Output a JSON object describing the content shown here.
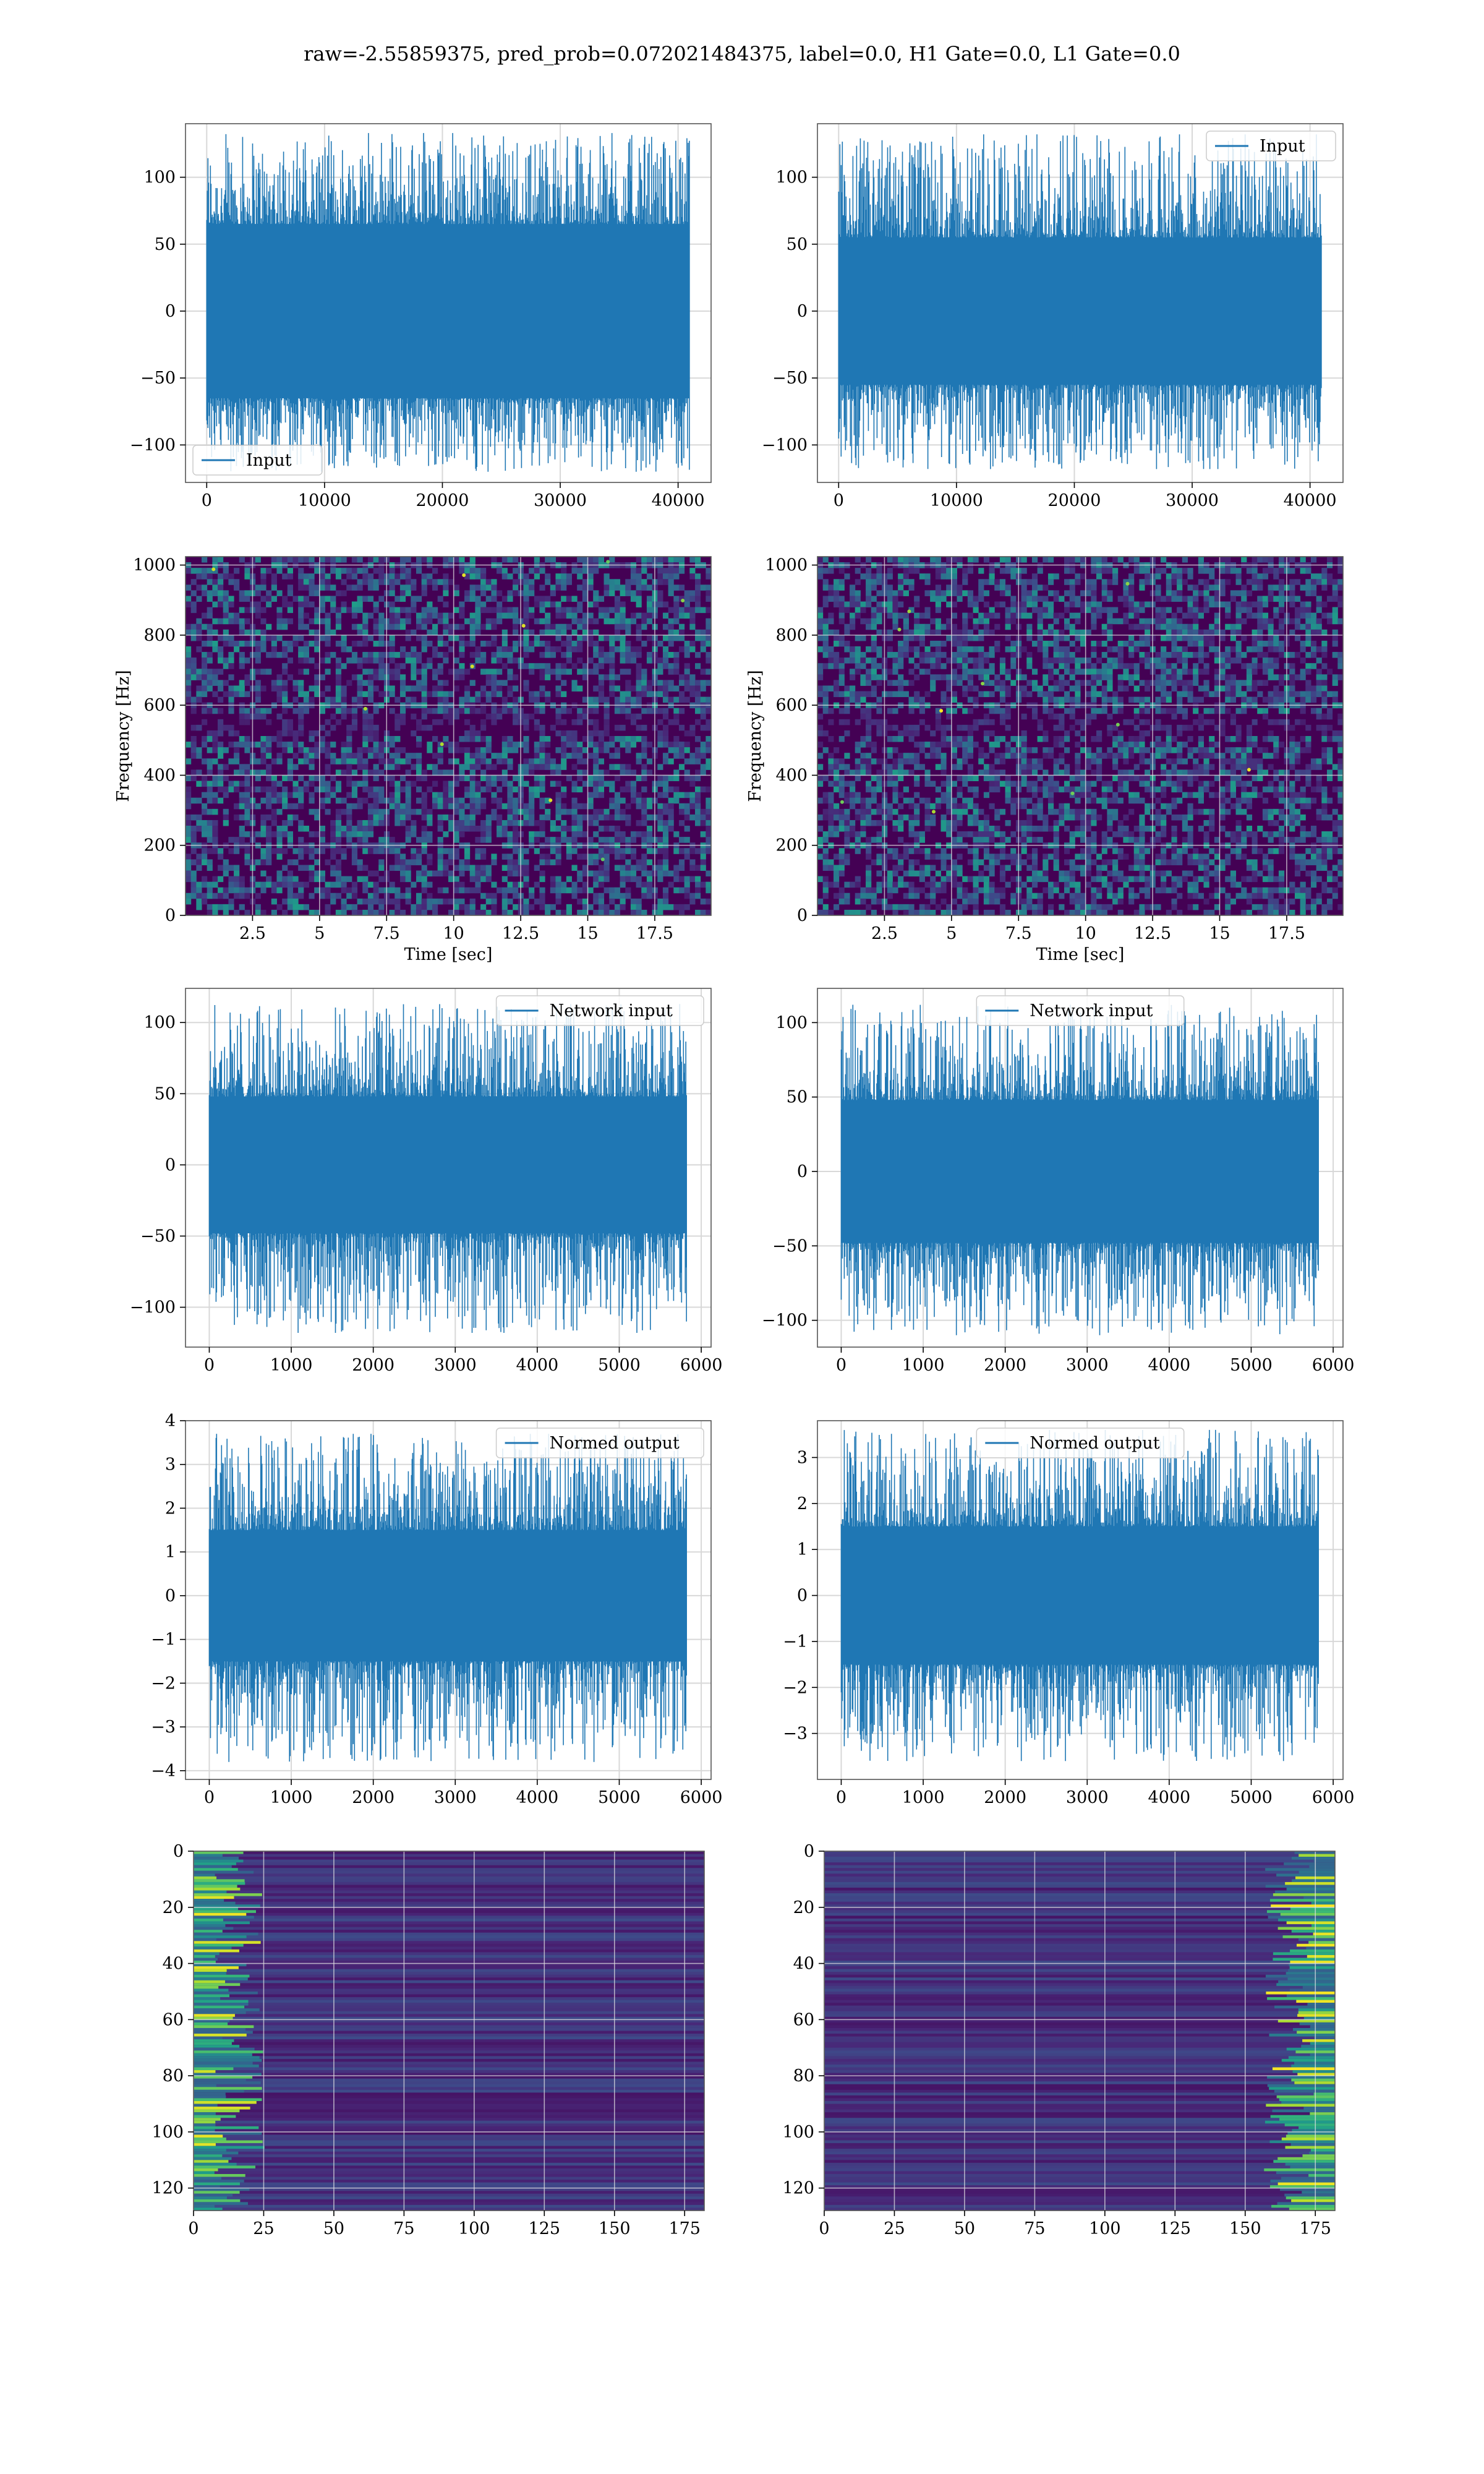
{
  "figure": {
    "title": "raw=-2.55859375, pred_prob=0.072021484375, label=0.0, H1 Gate=0.0, L1 Gate=0.0"
  },
  "colors": {
    "series": "#1f77b4",
    "grid": "#d8d8d8",
    "heat_low": "#440154",
    "heat_high": "#fde725"
  },
  "chart_data": [
    {
      "id": "r1c1",
      "type": "line",
      "legend": "Input",
      "legend_loc": "lower-left",
      "xlim": [
        -1800,
        42800
      ],
      "ylim": [
        -128,
        140
      ],
      "xticks": [
        0,
        10000,
        20000,
        30000,
        40000
      ],
      "yticks": [
        -100,
        -50,
        0,
        50,
        100
      ],
      "x_max": 40960,
      "core": 65,
      "extreme": [
        -120,
        133
      ],
      "grid": true
    },
    {
      "id": "r1c2",
      "type": "line",
      "legend": "Input",
      "legend_loc": "upper-right",
      "xlim": [
        -1800,
        42800
      ],
      "ylim": [
        -128,
        140
      ],
      "xticks": [
        0,
        10000,
        20000,
        30000,
        40000
      ],
      "yticks": [
        -100,
        -50,
        0,
        50,
        100
      ],
      "x_max": 40960,
      "core": 55,
      "extreme": [
        -118,
        132
      ],
      "grid": true
    },
    {
      "id": "r2c1",
      "type": "heatmap",
      "xlabel": "Time [sec]",
      "ylabel": "Frequency [Hz]",
      "xlim": [
        0,
        19.6
      ],
      "ylim": [
        0,
        1024
      ],
      "xticks": [
        2.5,
        5.0,
        7.5,
        10.0,
        12.5,
        15.0,
        17.5
      ],
      "yticks": [
        0,
        200,
        400,
        600,
        800,
        1000
      ],
      "grid": true
    },
    {
      "id": "r2c2",
      "type": "heatmap",
      "xlabel": "Time [sec]",
      "ylabel": "Frequency [Hz]",
      "xlim": [
        0,
        19.6
      ],
      "ylim": [
        0,
        1024
      ],
      "xticks": [
        2.5,
        5.0,
        7.5,
        10.0,
        12.5,
        15.0,
        17.5
      ],
      "yticks": [
        0,
        200,
        400,
        600,
        800,
        1000
      ],
      "grid": true
    },
    {
      "id": "r3c1",
      "type": "line",
      "legend": "Network input",
      "legend_loc": "upper-right",
      "xlim": [
        -290,
        6120
      ],
      "ylim": [
        -128,
        124
      ],
      "xticks": [
        0,
        1000,
        2000,
        3000,
        4000,
        5000,
        6000
      ],
      "yticks": [
        -100,
        -50,
        0,
        50,
        100
      ],
      "x_max": 5820,
      "core": 48,
      "extreme": [
        -118,
        113
      ],
      "grid": true
    },
    {
      "id": "r3c2",
      "type": "line",
      "legend": "Network input",
      "legend_loc": "upper-center",
      "xlim": [
        -290,
        6120
      ],
      "ylim": [
        -118,
        123
      ],
      "xticks": [
        0,
        1000,
        2000,
        3000,
        4000,
        5000,
        6000
      ],
      "yticks": [
        -100,
        -50,
        0,
        50,
        100
      ],
      "x_max": 5820,
      "core": 48,
      "extreme": [
        -110,
        112
      ],
      "grid": true
    },
    {
      "id": "r4c1",
      "type": "line",
      "legend": "Normed output",
      "legend_loc": "upper-right",
      "xlim": [
        -290,
        6120
      ],
      "ylim": [
        -4.2,
        4.0
      ],
      "xticks": [
        0,
        1000,
        2000,
        3000,
        4000,
        5000,
        6000
      ],
      "yticks": [
        -4,
        -3,
        -2,
        -1,
        0,
        1,
        2,
        3,
        4
      ],
      "x_max": 5820,
      "core": 1.5,
      "extreme": [
        -3.8,
        3.7
      ],
      "grid": true
    },
    {
      "id": "r4c2",
      "type": "line",
      "legend": "Normed output",
      "legend_loc": "upper-center",
      "xlim": [
        -290,
        6120
      ],
      "ylim": [
        -4.0,
        3.8
      ],
      "xticks": [
        0,
        1000,
        2000,
        3000,
        4000,
        5000,
        6000
      ],
      "yticks": [
        -3,
        -2,
        -1,
        0,
        1,
        2,
        3
      ],
      "x_max": 5820,
      "core": 1.5,
      "extreme": [
        -3.6,
        3.6
      ],
      "grid": true
    },
    {
      "id": "r5c1",
      "type": "heatmap",
      "xlim": [
        0,
        182
      ],
      "ylim": [
        128,
        0
      ],
      "xticks": [
        0,
        25,
        50,
        75,
        100,
        125,
        150,
        175
      ],
      "yticks": [
        0,
        20,
        40,
        60,
        80,
        100,
        120
      ],
      "grid": true,
      "hot_side": "left"
    },
    {
      "id": "r5c2",
      "type": "heatmap",
      "xlim": [
        0,
        182
      ],
      "ylim": [
        128,
        0
      ],
      "xticks": [
        0,
        25,
        50,
        75,
        100,
        125,
        150,
        175
      ],
      "yticks": [
        0,
        20,
        40,
        60,
        80,
        100,
        120
      ],
      "grid": true,
      "hot_side": "right"
    }
  ]
}
